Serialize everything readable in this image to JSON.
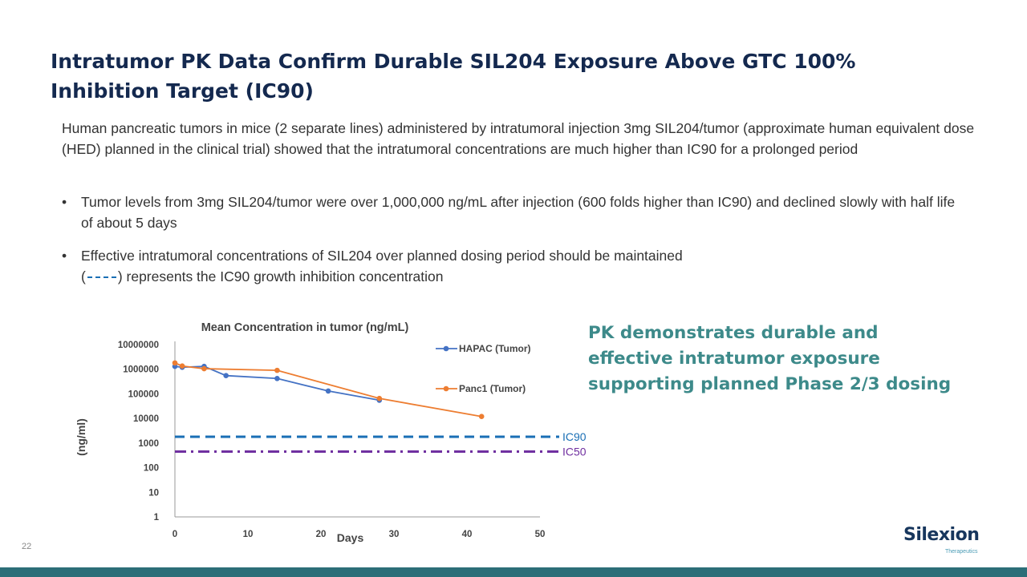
{
  "slide": {
    "title": "Intratumor PK Data Confirm Durable SIL204 Exposure Above GTC 100% Inhibition Target (IC90)",
    "intro": "Human pancreatic tumors in mice (2 separate lines) administered by intratumoral injection 3mg SIL204/tumor (approximate human equivalent dose (HED) planned in the clinical trial) showed that the intratumoral concentrations are much higher than IC90 for a prolonged period",
    "bullets": [
      "Tumor levels from 3mg SIL204/tumor were over 1,000,000 ng/mL after injection (600 folds higher than IC90) and declined slowly with half life of about 5 days",
      "Effective intratumoral concentrations of SIL204 over planned dosing period should be maintained"
    ],
    "bullet2_open": "(",
    "bullet2_close": ") represents the IC90 growth inhibition concentration",
    "pk_summary": "PK demonstrates durable and effective intratumor exposure supporting planned Phase 2/3 dosing",
    "page_number": "22",
    "logo_text": "Silexion",
    "logo_subtext": "Therapeutics"
  },
  "colors": {
    "title": "#14294f",
    "hapac": "#4472c4",
    "panc1": "#ed7d31",
    "ic90": "#1a6fb5",
    "ic50": "#7030a0",
    "summary": "#3d8a8a",
    "footer": "#2c6e78"
  },
  "chart_data": {
    "type": "line",
    "title": "Mean Concentration in tumor (ng/mL)",
    "xlabel": "Days",
    "ylabel": "(ng/ml)",
    "yscale": "log",
    "xlim": [
      0,
      50
    ],
    "ylim": [
      1,
      10000000
    ],
    "x_ticks": [
      "0",
      "10",
      "20",
      "30",
      "40",
      "50"
    ],
    "y_ticks": [
      "1",
      "10",
      "100",
      "1000",
      "10000",
      "100000",
      "1000000",
      "10000000"
    ],
    "legend_position": "top-right",
    "series": [
      {
        "name": "HAPAC (Tumor)",
        "x": [
          0,
          1,
          4,
          7,
          14,
          21,
          28
        ],
        "values": [
          1300000,
          1200000,
          1300000,
          550000,
          420000,
          130000,
          55000
        ]
      },
      {
        "name": "Panc1 (Tumor)",
        "x": [
          0,
          1,
          4,
          14,
          28,
          42
        ],
        "values": [
          1800000,
          1350000,
          1050000,
          900000,
          65000,
          12000
        ]
      }
    ],
    "reference_lines": [
      {
        "name": "IC90",
        "value": 1800,
        "style": "dashed"
      },
      {
        "name": "IC50",
        "value": 450,
        "style": "dash-dot"
      }
    ]
  }
}
